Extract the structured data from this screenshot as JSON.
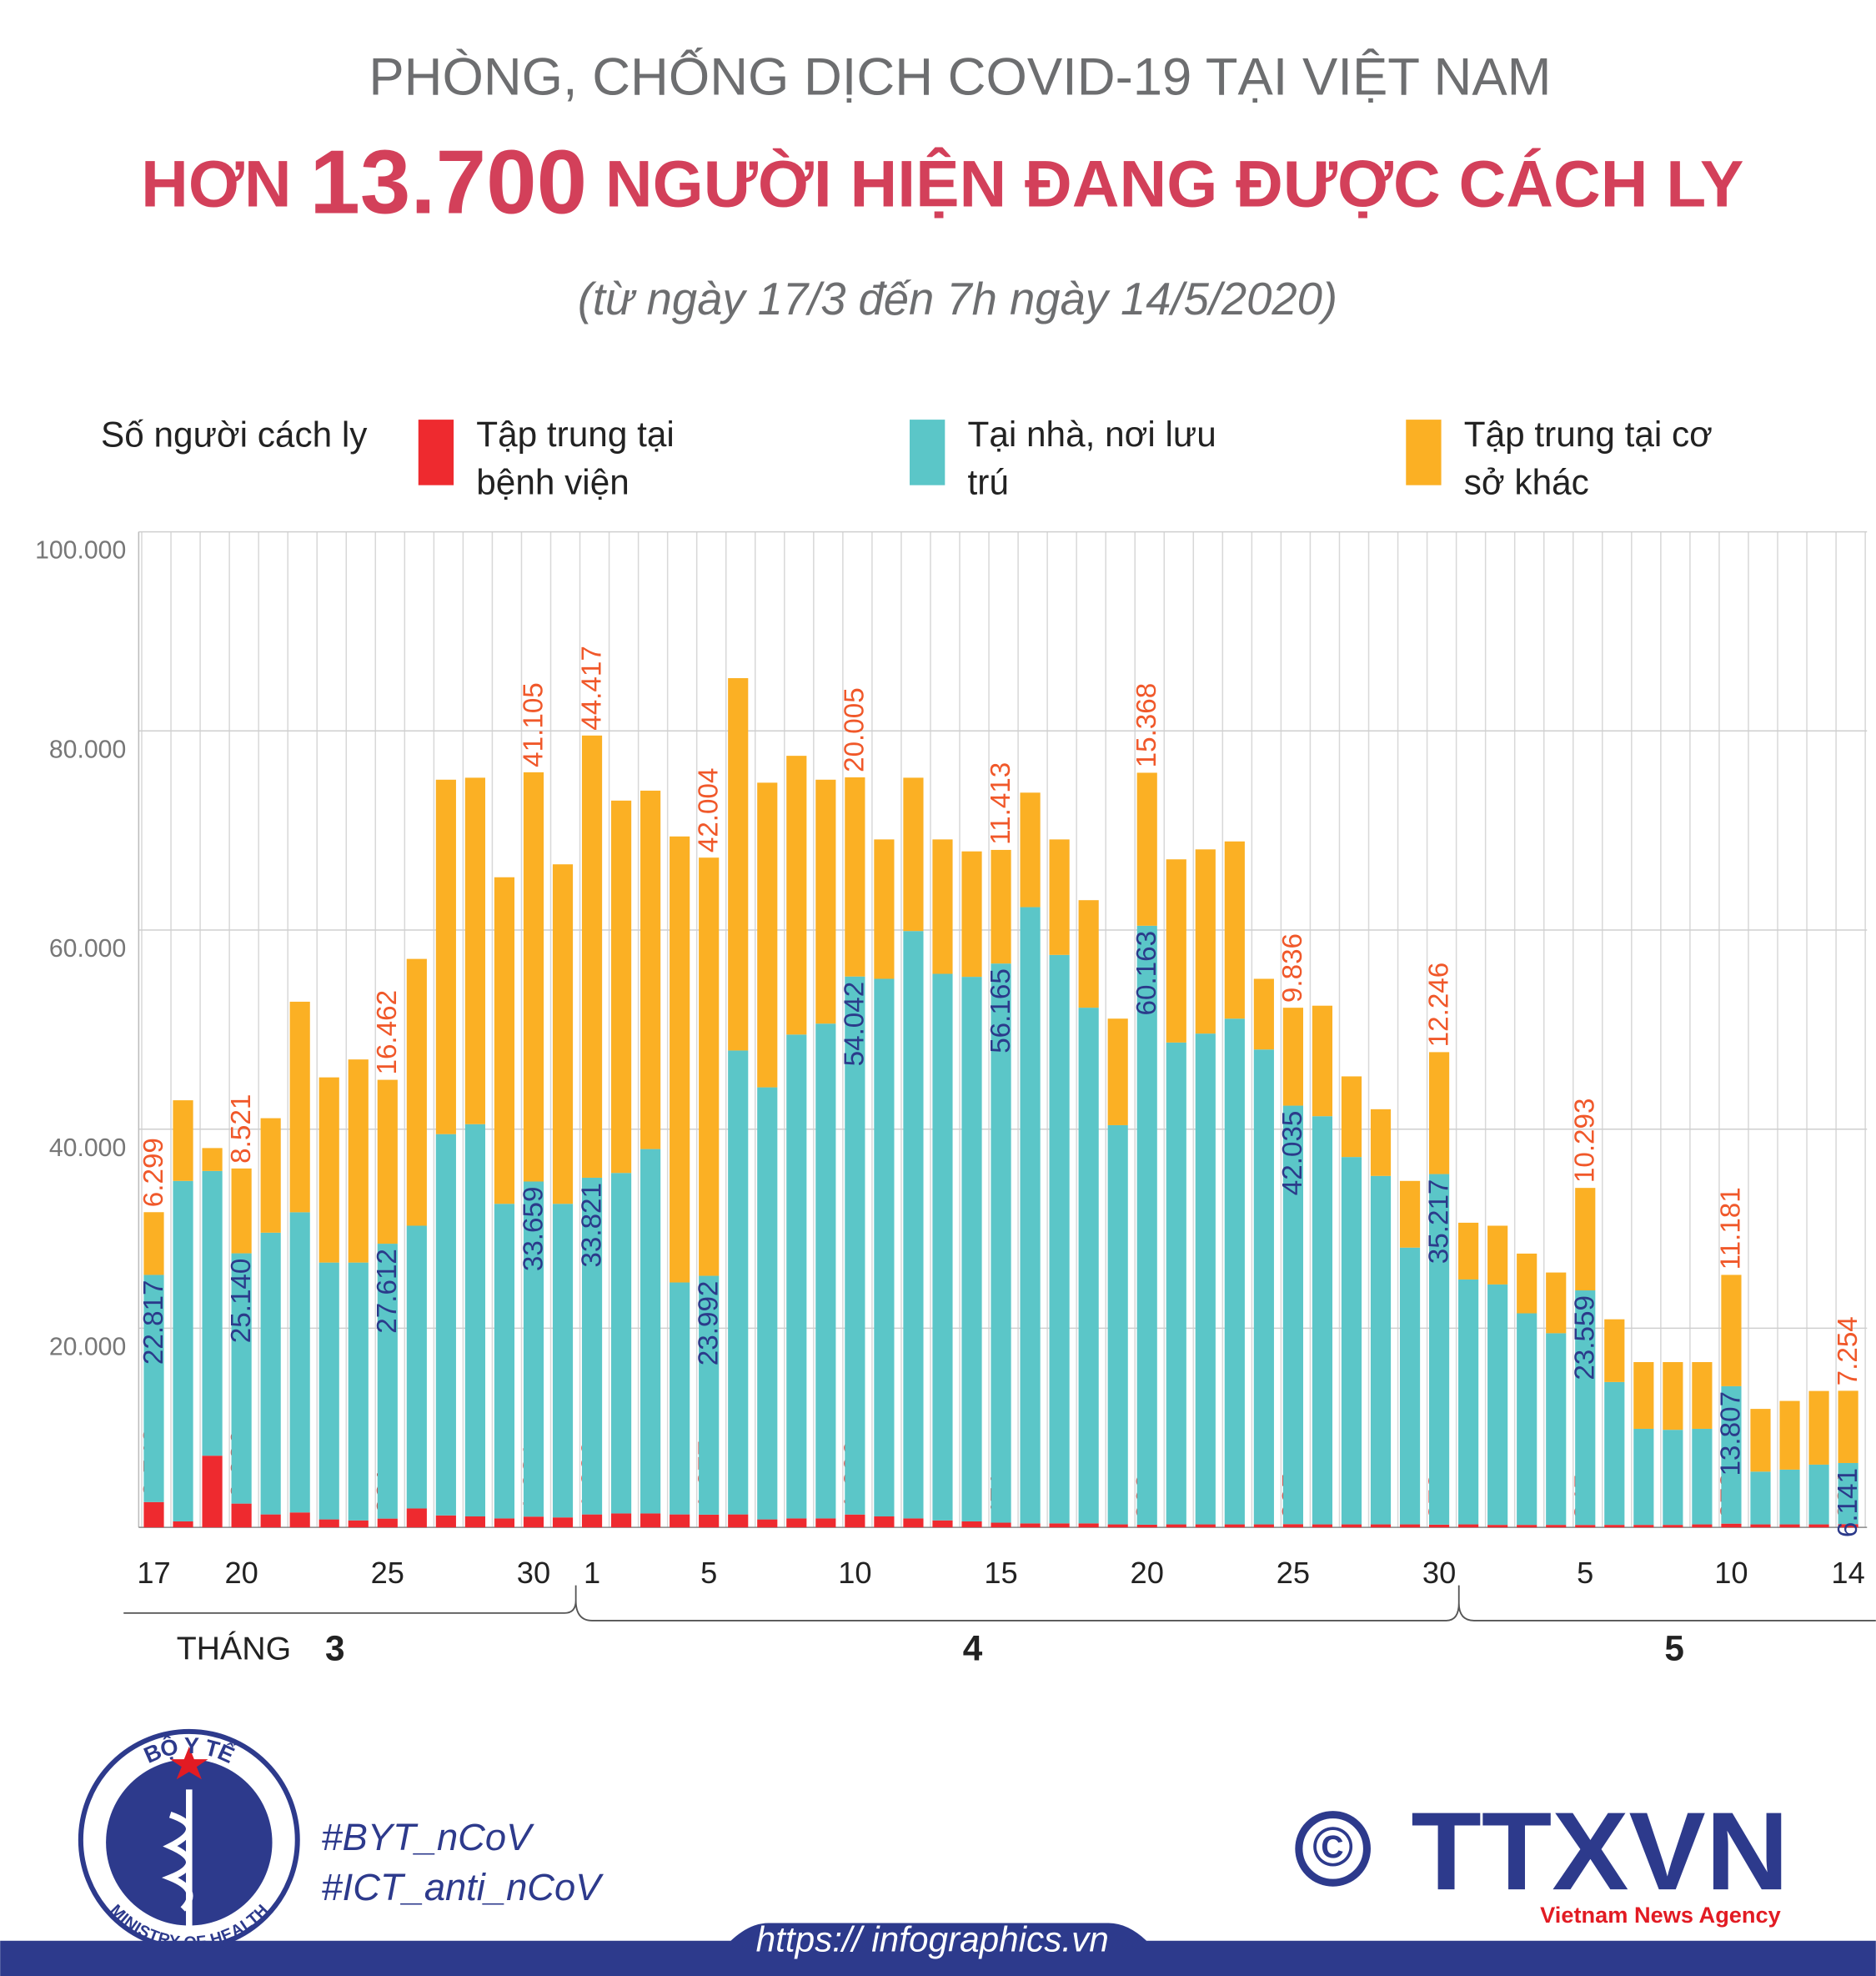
{
  "chart_data": {
    "type": "stacked_bar",
    "title": "PHÒNG, CHỐNG DỊCH COVID-19 TẠI VIỆT NAM",
    "headline": [
      "HƠN ",
      "13.700",
      " NGƯỜI HIỆN ĐANG ĐƯỢC CÁCH LY"
    ],
    "subtitle": "(từ ngày 17/3 đến 7h ngày 14/5/2020)",
    "y_label": "Số người cách ly",
    "x_label": "THÁNG",
    "months": [
      "3",
      "4",
      "5"
    ],
    "categories": [
      "17",
      null,
      null,
      "20",
      null,
      null,
      null,
      null,
      "25",
      null,
      null,
      null,
      null,
      "30",
      null,
      "1",
      null,
      null,
      null,
      "5",
      null,
      null,
      null,
      null,
      "10",
      null,
      null,
      null,
      null,
      "15",
      null,
      null,
      null,
      null,
      "20",
      null,
      null,
      null,
      null,
      "25",
      null,
      null,
      null,
      null,
      "30",
      null,
      null,
      null,
      null,
      "5",
      null,
      null,
      null,
      null,
      "10",
      null,
      null,
      null,
      "14"
    ],
    "ylim": [
      0,
      100000
    ],
    "yticks": [
      {
        "value": 20000,
        "label": "20.000"
      },
      {
        "value": 40000,
        "label": "40.000"
      },
      {
        "value": 60000,
        "label": "60.000"
      },
      {
        "value": 80000,
        "label": "80.000"
      },
      {
        "value": 100000,
        "label": "100.000"
      }
    ],
    "grid": true,
    "series": [
      {
        "name": "Tập trung tại bệnh viện",
        "color": "#ee2a2f",
        "label_color": "#e0372f",
        "values": [
          2543,
          600,
          7200,
          2389,
          1300,
          1500,
          800,
          700,
          881,
          1900,
          1200,
          1100,
          900,
          1081,
          1000,
          1299,
          1400,
          1400,
          1300,
          1277,
          1300,
          800,
          900,
          900,
          1290,
          1100,
          900,
          700,
          600,
          471,
          400,
          400,
          400,
          300,
          268,
          300,
          300,
          300,
          300,
          325,
          300,
          300,
          300,
          300,
          272,
          300,
          250,
          250,
          250,
          245,
          250,
          250,
          250,
          300,
          373,
          300,
          300,
          300,
          324
        ],
        "value_labels": [
          "2.543",
          null,
          null,
          "2.389",
          null,
          null,
          null,
          null,
          "881",
          null,
          null,
          null,
          null,
          "1.081",
          null,
          "1.299",
          null,
          null,
          null,
          "1.277",
          null,
          null,
          null,
          null,
          "1.290",
          null,
          null,
          null,
          null,
          "471",
          null,
          null,
          null,
          null,
          "268",
          null,
          null,
          null,
          null,
          "325",
          null,
          null,
          null,
          null,
          "272",
          null,
          null,
          null,
          null,
          "245",
          null,
          null,
          null,
          null,
          "373",
          null,
          null,
          null,
          "324"
        ]
      },
      {
        "name": "Tại nhà, nơi lưu trú",
        "color": "#5bc6c8",
        "label_color": "#2b3a8a",
        "values": [
          22817,
          34200,
          28600,
          25140,
          28300,
          30150,
          25800,
          25900,
          27612,
          28400,
          38300,
          39400,
          31600,
          33659,
          31500,
          33821,
          34200,
          36600,
          23300,
          23992,
          46600,
          43400,
          48600,
          49700,
          54042,
          54000,
          59000,
          54900,
          54700,
          56165,
          61900,
          57100,
          51800,
          40100,
          60163,
          48400,
          49300,
          50800,
          47700,
          42035,
          41000,
          36900,
          35000,
          27800,
          35217,
          24600,
          24150,
          21250,
          19250,
          23559,
          14350,
          9650,
          9550,
          9600,
          13807,
          5300,
          5500,
          6000,
          6141
        ],
        "value_labels": [
          "22.817",
          null,
          null,
          "25.140",
          null,
          null,
          null,
          null,
          "27.612",
          null,
          null,
          null,
          null,
          "33.659",
          null,
          "33.821",
          null,
          null,
          null,
          "23.992",
          null,
          null,
          null,
          null,
          "54.042",
          null,
          null,
          null,
          null,
          "56.165",
          null,
          null,
          null,
          null,
          "60.163",
          null,
          null,
          null,
          null,
          "42.035",
          null,
          null,
          null,
          null,
          "35.217",
          null,
          null,
          null,
          null,
          "23.559",
          null,
          null,
          null,
          null,
          "13.807",
          null,
          null,
          null,
          "6.141"
        ]
      },
      {
        "name": "Tập trung tại cơ sở khác",
        "color": "#fbb024",
        "label_color": "#f0582a",
        "values": [
          6299,
          8100,
          2300,
          8521,
          11500,
          21150,
          18600,
          20400,
          16462,
          26800,
          35600,
          34800,
          32800,
          41105,
          34100,
          44417,
          37400,
          36000,
          44800,
          42004,
          37400,
          30600,
          28000,
          24500,
          20005,
          14000,
          15400,
          13500,
          12600,
          11413,
          11500,
          11600,
          10800,
          10700,
          15368,
          18400,
          18500,
          17800,
          7100,
          9836,
          11100,
          8100,
          6700,
          6700,
          12246,
          5700,
          5900,
          6000,
          6100,
          10293,
          6300,
          6700,
          6800,
          6700,
          11181,
          6300,
          6900,
          7400,
          7254
        ],
        "value_labels": [
          "6.299",
          null,
          null,
          "8.521",
          null,
          null,
          null,
          null,
          "16.462",
          null,
          null,
          null,
          null,
          "41.105",
          null,
          "44.417",
          null,
          null,
          null,
          "42.004",
          null,
          null,
          null,
          null,
          "20.005",
          null,
          null,
          null,
          null,
          "11.413",
          null,
          null,
          null,
          null,
          "15.368",
          null,
          null,
          null,
          null,
          "9.836",
          null,
          null,
          null,
          null,
          "12.246",
          null,
          null,
          null,
          null,
          "10.293",
          null,
          null,
          null,
          null,
          "11.181",
          null,
          null,
          null,
          "7.254"
        ]
      }
    ]
  },
  "footer": {
    "ministry_top": "BỘ Y TẾ",
    "ministry_bottom": "MINISTRY OF HEALTH",
    "hashtags": [
      "#BYT_nCoV",
      "#ICT_anti_nCoV"
    ],
    "copyright": "©",
    "agency": "TTXVN",
    "agency_name": "Vietnam News Agency",
    "url": "https:// infographics.vn"
  }
}
